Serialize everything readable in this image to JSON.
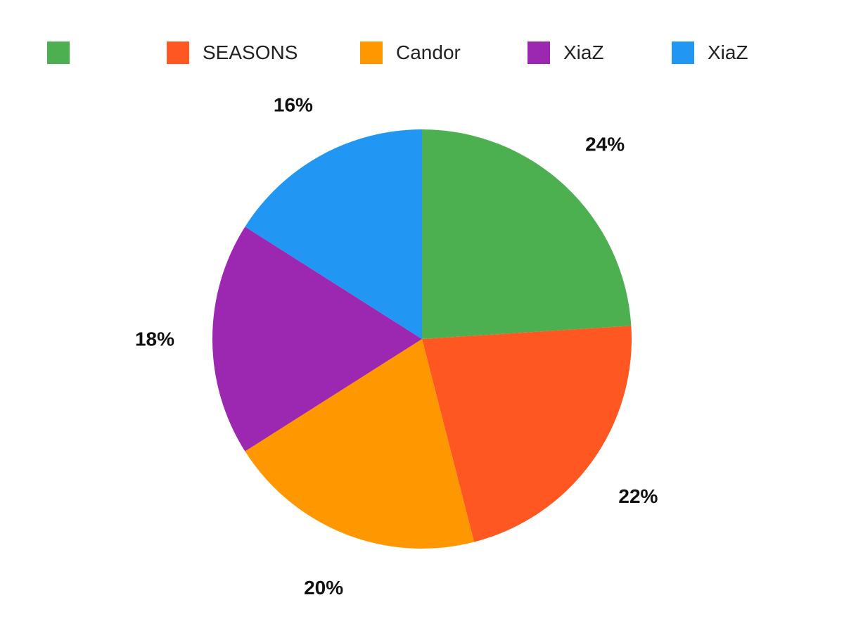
{
  "chart_data": {
    "type": "pie",
    "title": "",
    "categories": [
      "",
      "SEASONS",
      "Candor",
      "XiaZ",
      "XiaZ"
    ],
    "values": [
      24,
      22,
      20,
      18,
      16
    ],
    "value_labels": [
      "24%",
      "22%",
      "20%",
      "18%",
      "16%"
    ],
    "colors": [
      "#4caf50",
      "#ff5722",
      "#ff9800",
      "#9c27b0",
      "#2196f3"
    ],
    "start_angle": "12 o'clock",
    "direction": "clockwise",
    "legend": {
      "placement": "top"
    }
  }
}
